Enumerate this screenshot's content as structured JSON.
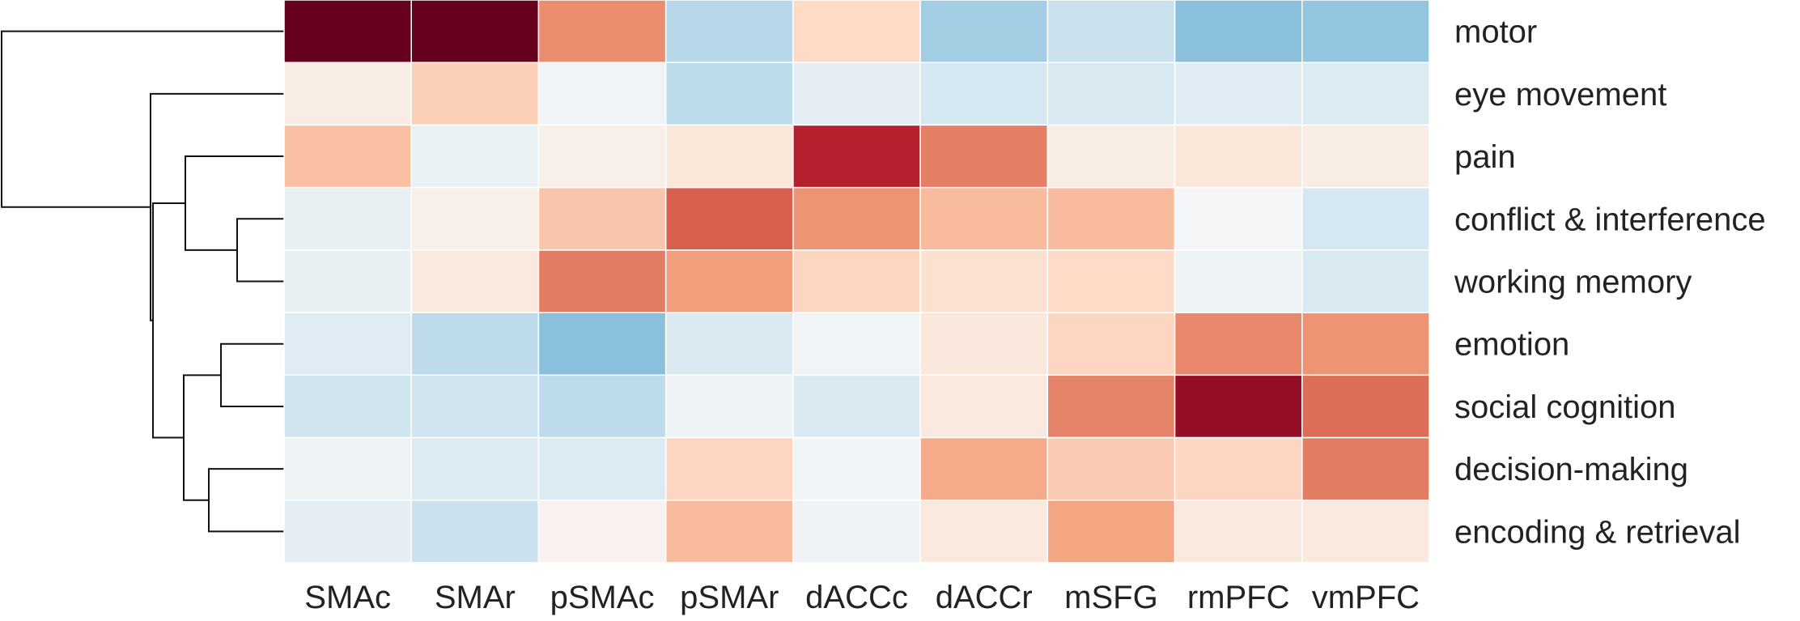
{
  "chart_data": {
    "type": "heatmap",
    "title": "",
    "xlabel": "",
    "ylabel": "",
    "columns": [
      "SMAc",
      "SMAr",
      "pSMAc",
      "pSMAr",
      "dACCc",
      "dACCr",
      "mSFG",
      "rmPFC",
      "vmPFC"
    ],
    "rows": [
      "motor",
      "eye movement",
      "pain",
      "conflict & interference",
      "working memory",
      "emotion",
      "social cognition",
      "decision-making",
      "encoding & retrieval"
    ],
    "values": [
      [
        1.0,
        1.0,
        0.47,
        -0.28,
        0.2,
        -0.35,
        -0.22,
        -0.42,
        -0.4
      ],
      [
        0.08,
        0.25,
        -0.03,
        -0.27,
        -0.1,
        -0.18,
        -0.16,
        -0.12,
        -0.14
      ],
      [
        0.3,
        -0.07,
        0.06,
        0.12,
        0.78,
        0.51,
        0.08,
        0.12,
        0.08
      ],
      [
        -0.08,
        0.06,
        0.28,
        0.6,
        0.45,
        0.32,
        0.32,
        -0.02,
        -0.18
      ],
      [
        -0.08,
        0.1,
        0.52,
        0.42,
        0.22,
        0.16,
        0.2,
        -0.05,
        -0.16
      ],
      [
        -0.12,
        -0.26,
        -0.42,
        -0.15,
        -0.03,
        0.11,
        0.22,
        0.48,
        0.45
      ],
      [
        -0.2,
        -0.2,
        -0.26,
        -0.05,
        -0.15,
        0.1,
        0.5,
        0.88,
        0.56
      ],
      [
        -0.05,
        -0.14,
        -0.14,
        0.22,
        -0.03,
        0.38,
        0.26,
        0.22,
        0.52
      ],
      [
        -0.1,
        -0.22,
        0.04,
        0.32,
        -0.04,
        0.1,
        0.4,
        0.1,
        0.1
      ]
    ],
    "colormap": "RdBu_r",
    "value_range": [
      -1,
      1
    ],
    "row_dendrogram": true,
    "grid": false,
    "legend": "none"
  }
}
